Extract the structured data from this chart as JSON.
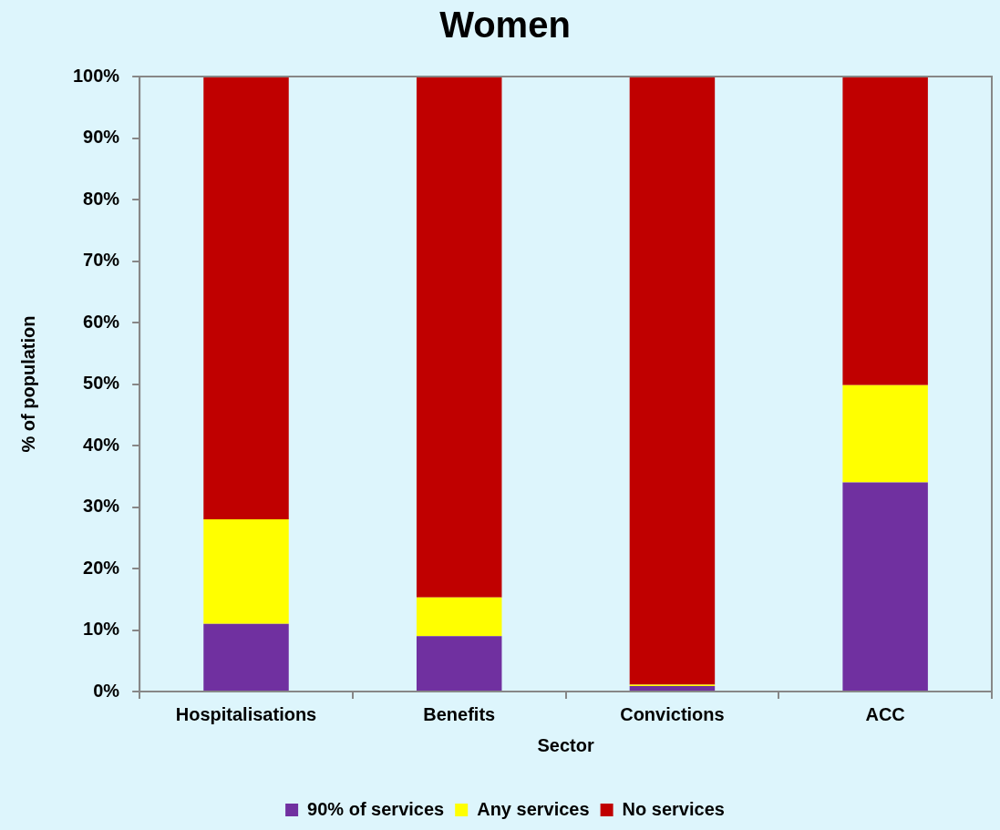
{
  "chart_data": {
    "type": "bar",
    "title": "Women",
    "xlabel": "Sector",
    "ylabel": "% of population",
    "categories": [
      "Hospitalisations",
      "Benefits",
      "Convictions",
      "ACC"
    ],
    "series": [
      {
        "name": "90% of services",
        "color": "#7030a0",
        "values": [
          11,
          9,
          0.9,
          34
        ]
      },
      {
        "name": "Any services",
        "color": "#ffff00",
        "values": [
          17,
          6.3,
          0.2,
          15.8
        ]
      },
      {
        "name": "No services",
        "color": "#c00000",
        "values": [
          72,
          84.7,
          98.9,
          50.2
        ]
      }
    ],
    "stacked": true,
    "ylim": [
      0,
      100
    ],
    "yticks": [
      {
        "value": 0,
        "label": "0%"
      },
      {
        "value": 10,
        "label": "10%"
      },
      {
        "value": 20,
        "label": "20%"
      },
      {
        "value": 30,
        "label": "30%"
      },
      {
        "value": 40,
        "label": "40%"
      },
      {
        "value": 50,
        "label": "50%"
      },
      {
        "value": 60,
        "label": "60%"
      },
      {
        "value": 70,
        "label": "70%"
      },
      {
        "value": 80,
        "label": "80%"
      },
      {
        "value": 90,
        "label": "90%"
      },
      {
        "value": 100,
        "label": "100%"
      }
    ],
    "legend": "bottom"
  }
}
